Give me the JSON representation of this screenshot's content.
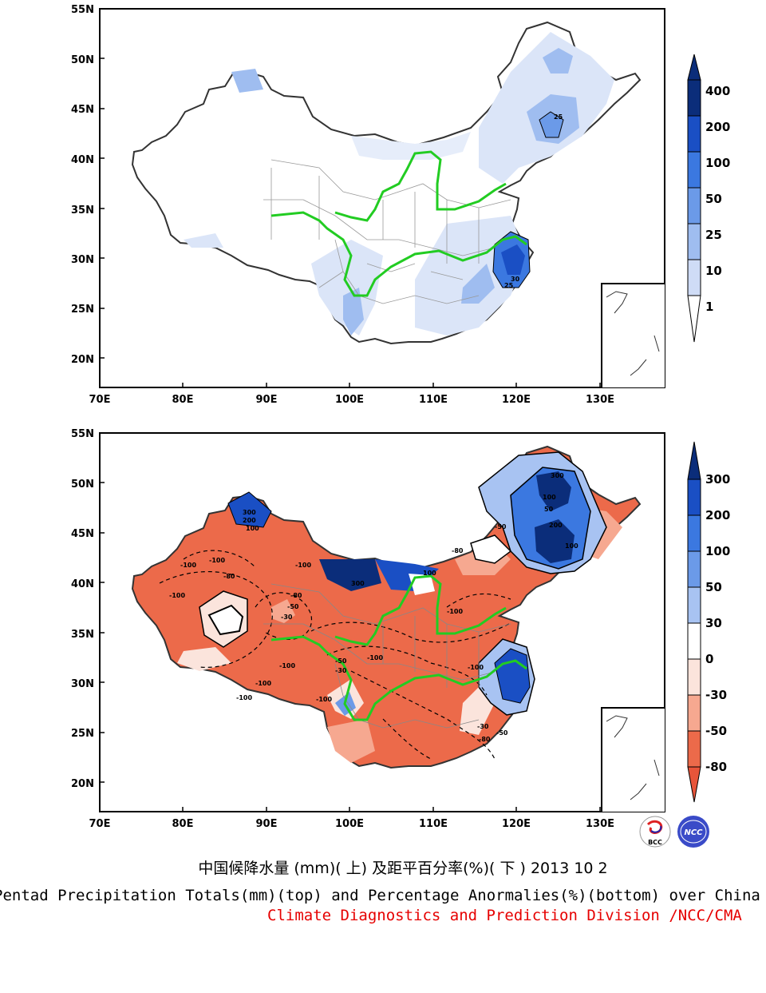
{
  "maps": [
    {
      "id": "totals",
      "lat_labels": [
        "55N",
        "50N",
        "45N",
        "40N",
        "35N",
        "30N",
        "25N",
        "20N"
      ],
      "lon_labels": [
        "70E",
        "80E",
        "90E",
        "100E",
        "110E",
        "120E",
        "130E"
      ],
      "colorbar_labels": [
        "400",
        "200",
        "100",
        "50",
        "25",
        "10",
        "1"
      ],
      "colorbar_colors": [
        "#0b2d7a",
        "#1a4fc4",
        "#3b78e0",
        "#6b9ae8",
        "#9fbdf0",
        "#cfdcf6",
        "#ffffff"
      ],
      "contour_labels": [
        "25",
        "30",
        "25"
      ]
    },
    {
      "id": "anomaly",
      "lat_labels": [
        "55N",
        "50N",
        "45N",
        "40N",
        "35N",
        "30N",
        "25N",
        "20N"
      ],
      "lon_labels": [
        "70E",
        "80E",
        "90E",
        "100E",
        "110E",
        "120E",
        "130E"
      ],
      "colorbar_labels": [
        "300",
        "200",
        "100",
        "50",
        "30",
        "0",
        "-30",
        "-50",
        "-80"
      ],
      "colorbar_colors": [
        "#0b2d7a",
        "#1a4fc4",
        "#3b78e0",
        "#6b9ae8",
        "#a8c3f2",
        "#ffffff",
        "#fbe4dc",
        "#f6a890",
        "#ec6a4a",
        "#e8553a"
      ],
      "contour_labels": [
        "-100",
        "-100",
        "-80",
        "-50",
        "-30",
        "300",
        "200",
        "100",
        "-100",
        "-100",
        "-80",
        "-100",
        "-50",
        "-30",
        "300",
        "100",
        "-100",
        "-100",
        "-100",
        "-100",
        "-80",
        "-50",
        "100",
        "50",
        "-100",
        "-30",
        "-80",
        "-50",
        "300",
        "200",
        "100",
        "-100"
      ]
    }
  ],
  "caption": {
    "chinese": "中国候降水量 (mm)( 上) 及距平百分率(%)( 下 ) 2013 10 2",
    "english": "Pentad Precipitation Totals(mm)(top) and Percentage Anormalies(%)(bottom) over China",
    "division": "Climate Diagnostics and Prediction Division /NCC/CMA"
  },
  "logos": {
    "left": "BCC",
    "right": "NCC"
  },
  "colors": {
    "rivers": "#22cc22",
    "division_text": "#e60000"
  }
}
